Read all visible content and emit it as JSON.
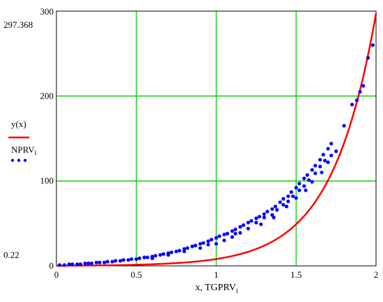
{
  "chart_data": {
    "type": "scatter",
    "xlabel": "x, TGPRV",
    "xlabel_subscript": "i",
    "xlim": [
      0,
      2
    ],
    "ylim": [
      0,
      300
    ],
    "grid": true,
    "grid_color": "#00cc00",
    "legend_placement": "left",
    "x_ticks": [
      "0",
      "0.5",
      "1",
      "1.5",
      "2"
    ],
    "x_tick_values": [
      0,
      0.5,
      1,
      1.5,
      2
    ],
    "y_ticks": [
      "0",
      "100",
      "200",
      "300"
    ],
    "y_tick_values": [
      0,
      100,
      200,
      300
    ],
    "y_markers": [
      {
        "label": "297.368",
        "value": 297.368
      },
      {
        "label": "0.22",
        "value": 0.22
      }
    ],
    "series": [
      {
        "name": "y(x)",
        "name_subscript": "",
        "kind": "line",
        "color": "#ff0000",
        "fn": "0.22*exp(ln(297.368/0.22)*x/2)"
      },
      {
        "name": "NPRV",
        "name_subscript": "i",
        "kind": "scatter",
        "color": "#0000ff",
        "x": [
          0.02,
          0.05,
          0.08,
          0.1,
          0.13,
          0.15,
          0.18,
          0.2,
          0.22,
          0.25,
          0.27,
          0.3,
          0.32,
          0.35,
          0.37,
          0.4,
          0.42,
          0.45,
          0.47,
          0.5,
          0.52,
          0.55,
          0.57,
          0.6,
          0.62,
          0.65,
          0.67,
          0.7,
          0.72,
          0.75,
          0.77,
          0.8,
          0.82,
          0.85,
          0.87,
          0.9,
          0.92,
          0.95,
          0.97,
          1.0,
          1.02,
          1.05,
          1.07,
          1.1,
          1.12,
          1.15,
          1.17,
          1.2,
          1.22,
          1.25,
          1.27,
          1.3,
          1.32,
          1.35,
          1.37,
          1.4,
          1.42,
          1.45,
          1.47,
          1.5,
          1.52,
          1.55,
          1.57,
          1.6,
          1.62,
          1.65,
          1.67,
          1.7,
          1.72,
          1.75,
          1.8,
          1.85,
          1.88,
          1.9,
          1.92,
          1.95,
          1.98,
          0.6,
          0.7,
          0.8,
          0.9,
          1.0,
          1.05,
          1.1,
          1.15,
          1.2,
          1.25,
          1.3,
          1.35,
          1.38,
          1.42,
          1.45,
          1.48,
          1.52,
          1.55,
          1.58,
          1.62,
          1.65,
          1.68,
          1.72,
          0.95,
          1.12,
          1.28,
          1.36,
          1.44,
          1.5,
          1.56,
          1.6,
          1.66,
          1.7
        ],
        "y": [
          1,
          1,
          2,
          2,
          2,
          2,
          3,
          3,
          3,
          4,
          4,
          4,
          5,
          5,
          6,
          6,
          7,
          7,
          8,
          8,
          9,
          10,
          10,
          11,
          12,
          13,
          14,
          15,
          16,
          17,
          18,
          20,
          21,
          23,
          24,
          26,
          27,
          29,
          31,
          33,
          35,
          37,
          38,
          41,
          43,
          46,
          48,
          51,
          53,
          56,
          58,
          61,
          64,
          67,
          70,
          75,
          79,
          82,
          87,
          92,
          97,
          103,
          107,
          113,
          118,
          125,
          131,
          138,
          144,
          135,
          165,
          190,
          195,
          205,
          212,
          245,
          260,
          9,
          13,
          17,
          21,
          26,
          30,
          34,
          39,
          44,
          51,
          57,
          60,
          66,
          72,
          76,
          82,
          89,
          94,
          101,
          109,
          117,
          124,
          130,
          25,
          38,
          49,
          57,
          70,
          80,
          89,
          99,
          110,
          122
        ]
      }
    ]
  }
}
